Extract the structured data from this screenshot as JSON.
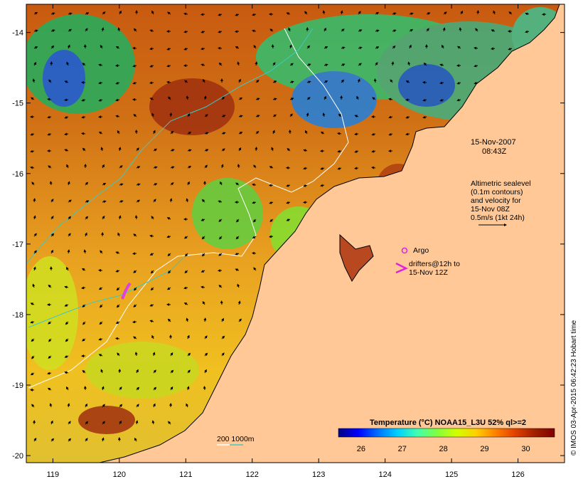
{
  "map": {
    "lon_range": [
      118.6,
      126.7
    ],
    "lat_range": [
      -20.1,
      -13.6
    ],
    "lon_ticks": [
      "119",
      "120",
      "121",
      "122",
      "123",
      "124",
      "125",
      "126"
    ],
    "lat_ticks": [
      "-14",
      "-15",
      "-16",
      "-17",
      "-18",
      "-19",
      "-20"
    ],
    "land_color": "#ffc896",
    "coast_color": "#000000"
  },
  "annotations": {
    "date": "15-Nov-2007",
    "time": "08:43Z",
    "legend_lines": [
      "Altimetric sealevel",
      "(0.1m contours)",
      "and velocity for",
      "15-Nov 08Z",
      "0.5m/s (1kt 24h)"
    ],
    "argo_label": "Argo",
    "drifters_lines": [
      "drifters@12h to",
      "15-Nov 12Z"
    ],
    "bathymetry_label": "200  1000m",
    "credit": "© IMOS 03-Apr-2015 06:42:23 Hobart time"
  },
  "colorbar": {
    "title": "Temperature (°C) NOAA15_L3U 52% ql>=2",
    "ticks": [
      "26",
      "27",
      "28",
      "29",
      "30"
    ],
    "colors": [
      "#00007f",
      "#0000ff",
      "#0070ff",
      "#00d0ff",
      "#40ffb0",
      "#80ff40",
      "#d0ff00",
      "#ffd000",
      "#ff8000",
      "#e04000",
      "#a02000",
      "#7f0000"
    ]
  }
}
